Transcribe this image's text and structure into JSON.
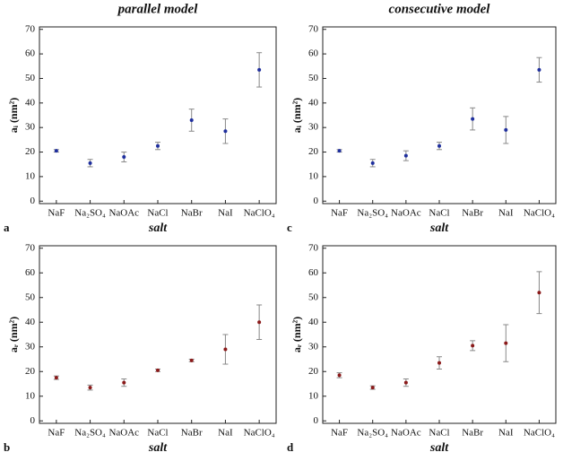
{
  "chart_data": [
    {
      "type": "errorbar",
      "title": "parallel model",
      "panel_label": "a",
      "x_label": "salt",
      "y_label": "aᵢ (nm²)",
      "categories": [
        "NaF",
        "Na₂SO₄",
        "NaOAc",
        "NaCl",
        "NaBr",
        "NaI",
        "NaClO₄"
      ],
      "values": [
        20.5,
        15.5,
        18,
        22.5,
        33,
        28.5,
        53.5
      ],
      "errors": [
        0.5,
        1.5,
        2,
        1.5,
        4.5,
        5,
        7
      ],
      "color": "#1f2f9e",
      "ylim": [
        -1,
        71
      ],
      "yticks": [
        0,
        10,
        20,
        30,
        40,
        50,
        60,
        70
      ]
    },
    {
      "type": "errorbar",
      "title": "consecutive model",
      "panel_label": "c",
      "x_label": "salt",
      "y_label": "aᵢ (nm²)",
      "categories": [
        "NaF",
        "Na₂SO₄",
        "NaOAc",
        "NaCl",
        "NaBr",
        "NaI",
        "NaClO₄"
      ],
      "values": [
        20.5,
        15.5,
        18.5,
        22.5,
        33.5,
        29,
        53.5
      ],
      "errors": [
        0.5,
        1.5,
        2,
        1.5,
        4.5,
        5.5,
        5
      ],
      "color": "#1f2f9e",
      "ylim": [
        -1,
        71
      ],
      "yticks": [
        0,
        10,
        20,
        30,
        40,
        50,
        60,
        70
      ]
    },
    {
      "type": "errorbar",
      "panel_label": "b",
      "x_label": "salt",
      "y_label": "aᵣ (nm²)",
      "categories": [
        "NaF",
        "Na₂SO₄",
        "NaOAc",
        "NaCl",
        "NaBr",
        "NaI",
        "NaClO₄"
      ],
      "values": [
        17.5,
        13.5,
        15.5,
        20.5,
        24.5,
        29,
        40
      ],
      "errors": [
        0.7,
        1,
        1.5,
        0.5,
        0.5,
        6,
        7
      ],
      "color": "#8b1a1a",
      "ylim": [
        -1,
        71
      ],
      "yticks": [
        0,
        10,
        20,
        30,
        40,
        50,
        60,
        70
      ]
    },
    {
      "type": "errorbar",
      "panel_label": "d",
      "x_label": "salt",
      "y_label": "aᵣ (nm²)",
      "categories": [
        "NaF",
        "Na₂SO₄",
        "NaOAc",
        "NaCl",
        "NaBr",
        "NaI",
        "NaClO₄"
      ],
      "values": [
        18.5,
        13.5,
        15.5,
        23.5,
        30.5,
        31.5,
        52
      ],
      "errors": [
        1,
        0.7,
        1.5,
        2.5,
        2,
        7.5,
        8.5
      ],
      "color": "#8b1a1a",
      "ylim": [
        -1,
        71
      ],
      "yticks": [
        0,
        10,
        20,
        30,
        40,
        50,
        60,
        70
      ]
    }
  ]
}
